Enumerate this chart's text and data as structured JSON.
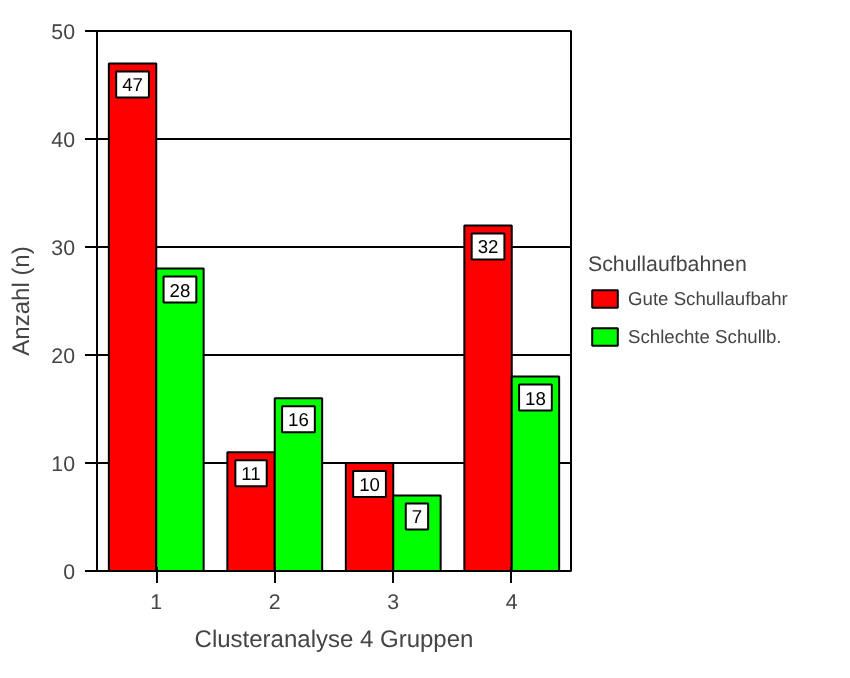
{
  "chart_data": {
    "type": "bar",
    "xlabel": "Clusteranalyse 4 Gruppen",
    "ylabel": "Anzahl (n)",
    "legend_title": "Schullaufbahnen",
    "categories": [
      "1",
      "2",
      "3",
      "4"
    ],
    "series": [
      {
        "name": "Gute Schullaufbahr",
        "color": "#ff0000",
        "values": [
          47,
          11,
          10,
          32
        ]
      },
      {
        "name": "Schlechte Schullb.",
        "color": "#00ff00",
        "values": [
          28,
          16,
          7,
          18
        ]
      }
    ],
    "ylim": [
      0,
      50
    ],
    "yticks": [
      0,
      10,
      20,
      30,
      40,
      50
    ],
    "grid": "y",
    "legend": "right",
    "data_labels": true
  }
}
